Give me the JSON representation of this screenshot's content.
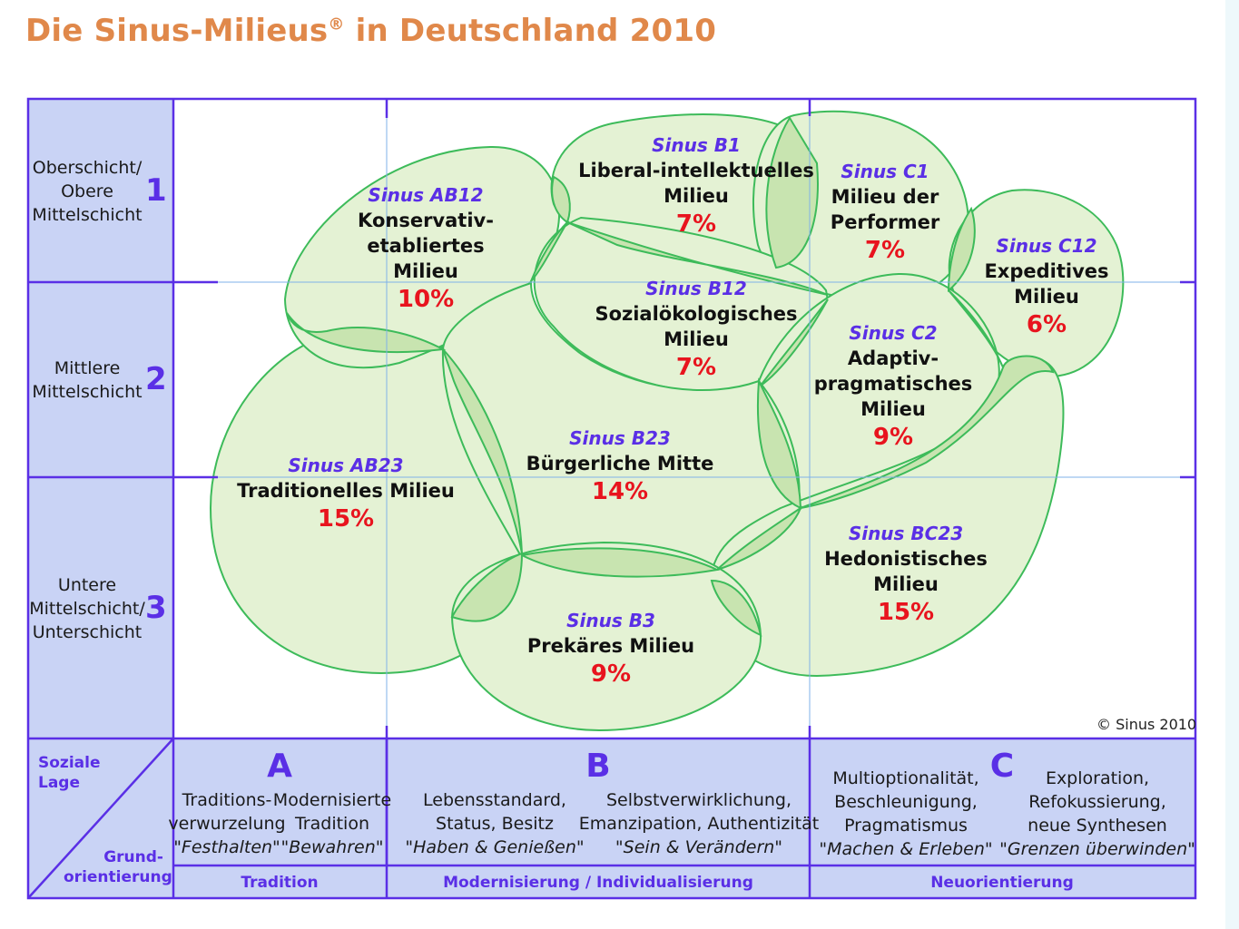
{
  "title": {
    "main": "Die Sinus-Milieus",
    "reg": "®",
    "rest": " in Deutschland 2010"
  },
  "rows": [
    {
      "label_lines": [
        "Oberschicht/",
        "Obere",
        "Mittelschicht"
      ],
      "number": "1"
    },
    {
      "label_lines": [
        "Mittlere",
        "Mittelschicht"
      ],
      "number": "2"
    },
    {
      "label_lines": [
        "Untere",
        "Mittelschicht/",
        "Unterschicht"
      ],
      "number": "3"
    }
  ],
  "milieus": [
    {
      "code": "Sinus AB12",
      "name_lines": [
        "Konservativ-",
        "etabliertes",
        "Milieu"
      ],
      "percent": "10%"
    },
    {
      "code": "Sinus B1",
      "name_lines": [
        "Liberal-intellektuelles",
        "Milieu"
      ],
      "percent": "7%"
    },
    {
      "code": "Sinus C1",
      "name_lines": [
        "Milieu der",
        "Performer"
      ],
      "percent": "7%"
    },
    {
      "code": "Sinus C12",
      "name_lines": [
        "Expeditives",
        "Milieu"
      ],
      "percent": "6%"
    },
    {
      "code": "Sinus B12",
      "name_lines": [
        "Sozialökologisches",
        "Milieu"
      ],
      "percent": "7%"
    },
    {
      "code": "Sinus C2",
      "name_lines": [
        "Adaptiv-",
        "pragmatisches",
        "Milieu"
      ],
      "percent": "9%"
    },
    {
      "code": "Sinus AB23",
      "name_lines": [
        "Traditionelles Milieu"
      ],
      "percent": "15%"
    },
    {
      "code": "Sinus B23",
      "name_lines": [
        "Bürgerliche Mitte"
      ],
      "percent": "14%"
    },
    {
      "code": "Sinus BC23",
      "name_lines": [
        "Hedonistisches",
        "Milieu"
      ],
      "percent": "15%"
    },
    {
      "code": "Sinus B3",
      "name_lines": [
        "Prekäres Milieu"
      ],
      "percent": "9%"
    }
  ],
  "copyright": "© Sinus 2010",
  "corner": {
    "top_lines": [
      "Soziale",
      "Lage"
    ],
    "bottom_lines": [
      "Grund-",
      "orientierung"
    ]
  },
  "columns": [
    {
      "letter": "A",
      "texts": [
        {
          "lines": [
            "Traditions-",
            "verwurzelung"
          ],
          "quote": "\"Festhalten\""
        },
        {
          "lines": [
            "Modernisierte",
            "Tradition"
          ],
          "quote": "\"Bewahren\""
        }
      ],
      "bottom": "Tradition"
    },
    {
      "letter": "B",
      "texts": [
        {
          "lines": [
            "Lebensstandard,",
            "Status, Besitz"
          ],
          "quote": "\"Haben & Genießen\""
        },
        {
          "lines": [
            "Selbstverwirklichung,",
            "Emanzipation, Authentizität"
          ],
          "quote": "\"Sein & Verändern\""
        }
      ],
      "bottom": "Modernisierung  /  Individualisierung"
    },
    {
      "letter": "C",
      "texts": [
        {
          "lines": [
            "Multioptionalität,",
            "Beschleunigung,",
            "Pragmatismus"
          ],
          "quote": "\"Machen & Erleben\""
        },
        {
          "lines": [
            "Exploration,",
            "Refokussierung,",
            "neue Synthesen"
          ],
          "quote": "\"Grenzen überwinden\""
        }
      ],
      "bottom": "Neuorientierung"
    }
  ],
  "colors": {
    "grid": "#5a2fe6",
    "panel": "#c9d3f5",
    "bubble_fill": "#e4f2d4",
    "bubble_stroke": "#3dbb5a",
    "overlap_fill": "#c8e4b0",
    "pct": "#e8141e",
    "title": "#e0884a"
  }
}
